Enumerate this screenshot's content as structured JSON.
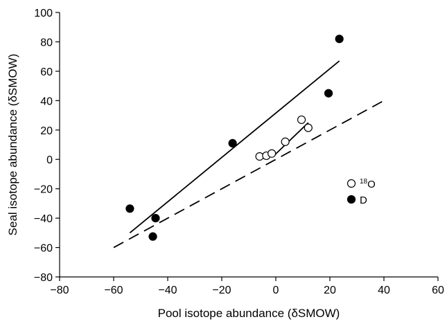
{
  "chart_data": {
    "type": "scatter",
    "xlabel": "Pool isotope abundance (δSMOW)",
    "ylabel": "Seal isotope abundance (δSMOW)",
    "xlim": [
      -80,
      60
    ],
    "ylim": [
      -80,
      100
    ],
    "xticks": [
      "−80",
      "−60",
      "−40",
      "−20",
      "0",
      "20",
      "40",
      "60"
    ],
    "yticks": [
      "−80",
      "−60",
      "−40",
      "−20",
      "0",
      "20",
      "40",
      "60",
      "80",
      "100"
    ],
    "grid": false,
    "legend_position": "right",
    "series": [
      {
        "name": "18O",
        "legend_sup": "18",
        "legend_main": "O",
        "marker": "open-circle",
        "points": [
          [
            -6,
            2
          ],
          [
            -3.5,
            2.5
          ],
          [
            -1.5,
            4
          ],
          [
            3.5,
            12
          ],
          [
            9.5,
            27
          ],
          [
            12,
            21.5
          ]
        ],
        "fit": [
          [
            -1,
            2
          ],
          [
            12,
            25
          ]
        ]
      },
      {
        "name": "D",
        "marker": "filled-circle",
        "points": [
          [
            -54,
            -33.5
          ],
          [
            -45.5,
            -52.5
          ],
          [
            -44.5,
            -40
          ],
          [
            -16,
            11
          ],
          [
            19.5,
            45
          ],
          [
            23.5,
            82
          ]
        ],
        "fit": [
          [
            -54,
            -50
          ],
          [
            23.5,
            67
          ]
        ]
      }
    ],
    "reference_line": {
      "style": "dashed",
      "points": [
        [
          -60,
          -60
        ],
        [
          40,
          40
        ]
      ]
    }
  }
}
